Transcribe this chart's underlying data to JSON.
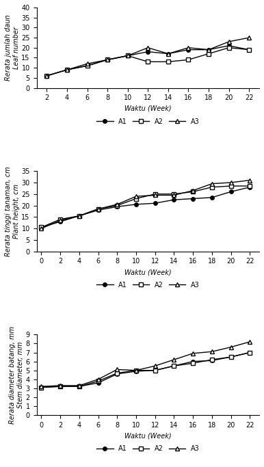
{
  "weeks_leaf": [
    2,
    4,
    6,
    8,
    10,
    12,
    14,
    16,
    18,
    20,
    22
  ],
  "leaf_A1": [
    6,
    9,
    11,
    14,
    16,
    18,
    17,
    19,
    19,
    21,
    19
  ],
  "leaf_A2": [
    6,
    9,
    11,
    14,
    16,
    13,
    13,
    14,
    17,
    20,
    19
  ],
  "leaf_A3": [
    6,
    9,
    12,
    14,
    16,
    20,
    17,
    20,
    19,
    23,
    25
  ],
  "weeks_ht": [
    0,
    2,
    4,
    6,
    8,
    10,
    12,
    14,
    16,
    18,
    20,
    22
  ],
  "height_A1": [
    10.5,
    13.0,
    15.5,
    18.0,
    19.5,
    20.5,
    21.0,
    22.5,
    23.0,
    23.5,
    26.0,
    28.0
  ],
  "height_A2": [
    10.5,
    14.0,
    15.5,
    18.5,
    20.0,
    23.0,
    25.0,
    25.0,
    26.0,
    28.0,
    28.5,
    28.5
  ],
  "height_A3": [
    10.0,
    13.5,
    15.5,
    18.5,
    20.5,
    24.0,
    24.5,
    24.5,
    26.5,
    29.5,
    30.0,
    31.0
  ],
  "weeks_sd": [
    0,
    2,
    4,
    6,
    8,
    10,
    12,
    14,
    16,
    18,
    20,
    22
  ],
  "sd_A1": [
    3.1,
    3.2,
    3.2,
    3.6,
    4.6,
    4.9,
    5.0,
    5.5,
    6.0,
    6.1,
    6.5,
    7.0
  ],
  "sd_A2": [
    3.1,
    3.2,
    3.2,
    3.8,
    4.7,
    5.0,
    5.0,
    5.5,
    5.8,
    6.2,
    6.5,
    7.0
  ],
  "sd_A3": [
    3.2,
    3.3,
    3.3,
    4.0,
    5.1,
    5.0,
    5.5,
    6.2,
    6.9,
    7.1,
    7.6,
    8.2
  ],
  "ylabel_leaf": "Rerata jumlah daun\nLeaf number",
  "ylabel_ht": "Rerata tinggi tanaman, cm\nPlant height, cm",
  "ylabel_sd": "Rerata diameter batang, mm\nStem diameter, mm",
  "xlabel": "Waktu (Week)",
  "legend_leaf": [
    "A1",
    "A2",
    "A3"
  ],
  "legend_ht": [
    "A1",
    "A2",
    "A3"
  ],
  "legend_sd": [
    "A1",
    "A2",
    "A3"
  ],
  "ylim_leaf": [
    0,
    40
  ],
  "ylim_ht": [
    0,
    35
  ],
  "ylim_sd": [
    0,
    9
  ],
  "yticks_leaf": [
    0,
    5,
    10,
    15,
    20,
    25,
    30,
    35,
    40
  ],
  "yticks_ht": [
    0,
    5,
    10,
    15,
    20,
    25,
    30,
    35
  ],
  "yticks_sd": [
    0,
    1,
    2,
    3,
    4,
    5,
    6,
    7,
    8,
    9
  ],
  "xticks_leaf": [
    2,
    4,
    6,
    8,
    10,
    12,
    14,
    16,
    18,
    20,
    22
  ],
  "xticks_ht": [
    0,
    2,
    4,
    6,
    8,
    10,
    12,
    14,
    16,
    18,
    20,
    22
  ],
  "xticks_sd": [
    0,
    2,
    4,
    6,
    8,
    10,
    12,
    14,
    16,
    18,
    20,
    22
  ],
  "line_color": "#000000",
  "bg_color": "#ffffff",
  "fontsize_label": 7,
  "fontsize_tick": 7,
  "fontsize_legend": 7
}
